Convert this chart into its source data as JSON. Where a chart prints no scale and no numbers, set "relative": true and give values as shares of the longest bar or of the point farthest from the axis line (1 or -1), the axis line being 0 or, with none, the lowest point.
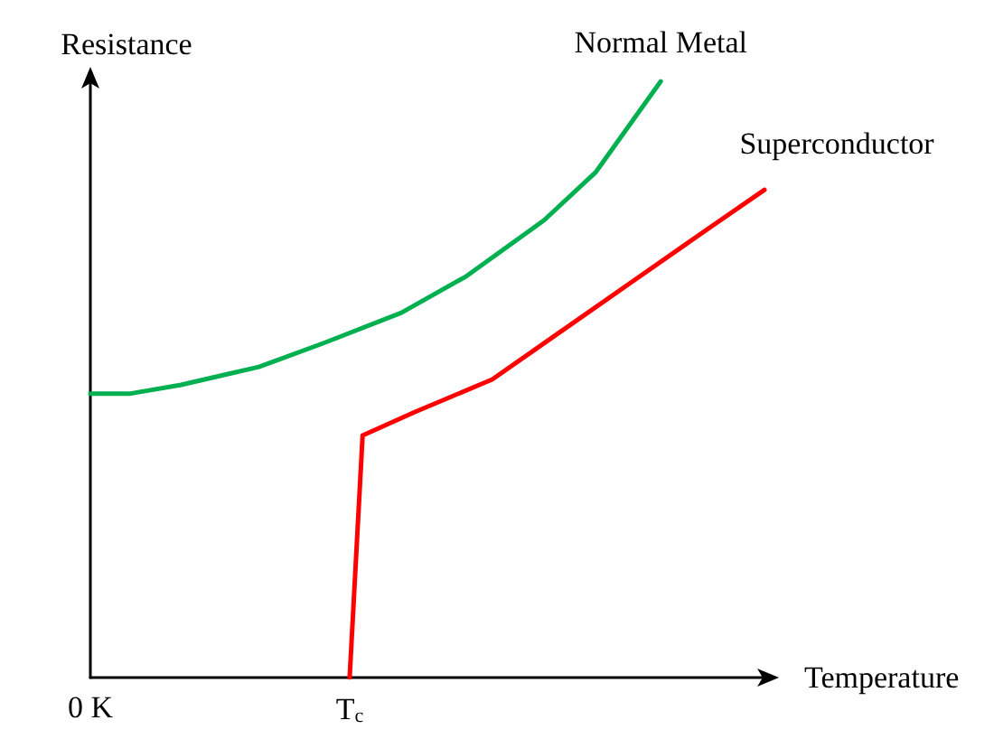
{
  "chart_data": {
    "type": "line",
    "relative": true,
    "xlabel": "Temperature",
    "ylabel": "Resistance",
    "categories": [
      "0 K",
      null,
      null,
      null,
      null,
      null,
      null,
      null,
      null,
      null,
      null,
      null,
      null,
      null,
      null,
      null,
      null,
      null,
      null,
      null,
      "T$_{c}$",
      null,
      null,
      null,
      null,
      null,
      null,
      null,
      null,
      null,
      null,
      null,
      null,
      null,
      null,
      null,
      null,
      null,
      null,
      null,
      null,
      null,
      null,
      null,
      null,
      null,
      null,
      null,
      null,
      null,
      null,
      null,
      null
    ],
    "series": [
      {
        "name": "Normal Metal",
        "color": "#00b050",
        "values": [
          0.476,
          null,
          null,
          0.476,
          null,
          null,
          null,
          0.491,
          null,
          null,
          null,
          null,
          null,
          0.521,
          null,
          null,
          null,
          null,
          0.561,
          null,
          null,
          null,
          null,
          null,
          0.612,
          null,
          null,
          null,
          null,
          0.673,
          null,
          null,
          null,
          null,
          null,
          0.767,
          null,
          null,
          null,
          0.848,
          null,
          null,
          null,
          null,
          1.0,
          null,
          null,
          null,
          null,
          null,
          null,
          null,
          null
        ]
      },
      {
        "name": "Superconductor",
        "color": "#ff0000",
        "values": [
          null,
          null,
          null,
          null,
          null,
          null,
          null,
          null,
          null,
          null,
          null,
          null,
          null,
          null,
          null,
          null,
          null,
          null,
          null,
          null,
          0,
          0.406,
          null,
          null,
          null,
          0.445,
          null,
          null,
          null,
          null,
          null,
          0.5,
          null,
          null,
          null,
          null,
          0.576,
          null,
          null,
          null,
          null,
          null,
          0.667,
          null,
          null,
          null,
          null,
          null,
          0.758,
          null,
          null,
          null,
          0.818
        ]
      }
    ],
    "grid": false,
    "legend": false,
    "marker": "none",
    "line_style": "solid"
  }
}
